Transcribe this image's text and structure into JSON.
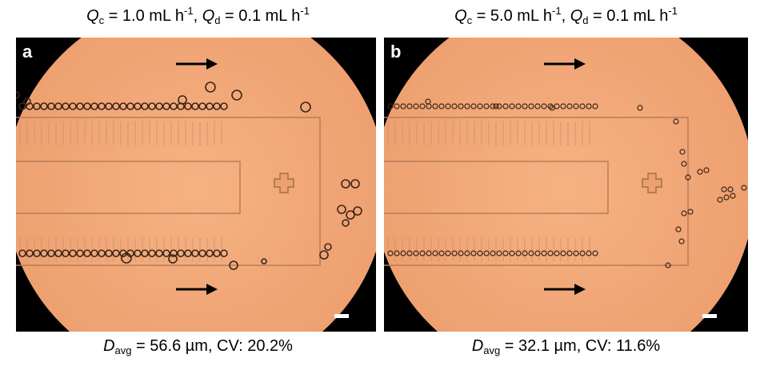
{
  "panels": [
    {
      "label": "a",
      "title": [
        "Q",
        "c",
        " = 1.0 mL h",
        "-1",
        ", ",
        "Q",
        "d",
        " = 0.1 mL h",
        "-1"
      ],
      "caption": [
        "D",
        "avg",
        " = 56.6 µm, CV: 20.2%"
      ]
    },
    {
      "label": "b",
      "title": [
        "Q",
        "c",
        " = 5.0 mL h",
        "-1",
        ", ",
        "Q",
        "d",
        " = 0.1 mL h",
        "-1"
      ],
      "caption": [
        "D",
        "avg",
        " = 32.1 µm, CV: 11.6%"
      ]
    }
  ]
}
